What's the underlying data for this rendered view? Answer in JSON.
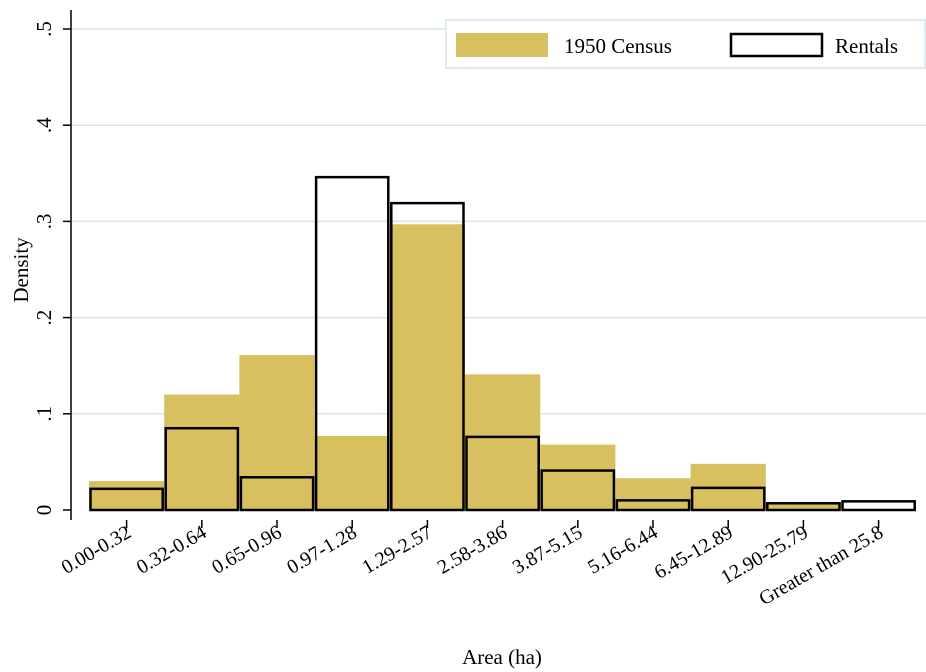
{
  "chart_data": {
    "type": "bar",
    "title": "",
    "xlabel": "Area (ha)",
    "ylabel": "Density",
    "ylim": [
      0,
      0.5
    ],
    "yticks": [
      0,
      0.1,
      0.2,
      0.3,
      0.4,
      0.5
    ],
    "ytick_labels": [
      "0",
      ".1",
      ".2",
      ".3",
      ".4",
      ".5"
    ],
    "grid": true,
    "legend_position": "top-right",
    "categories": [
      "0.00-0.32",
      "0.32-0.64",
      "0.65-0.96",
      "0.97-1.28",
      "1.29-2.57",
      "2.58-3.86",
      "3.87-5.15",
      "5.16-6.44",
      "6.45-12.89",
      "12.90-25.79",
      "Greater than 25.8"
    ],
    "series": [
      {
        "name": "1950 Census",
        "style": "filled",
        "color": "#D8BF5F",
        "values": [
          0.03,
          0.12,
          0.161,
          0.077,
          0.297,
          0.141,
          0.068,
          0.033,
          0.048,
          0.008,
          0.0
        ]
      },
      {
        "name": "Rentals",
        "style": "outline",
        "color": "#000000",
        "values": [
          0.022,
          0.085,
          0.034,
          0.346,
          0.319,
          0.076,
          0.041,
          0.01,
          0.023,
          0.007,
          0.009
        ]
      }
    ]
  }
}
